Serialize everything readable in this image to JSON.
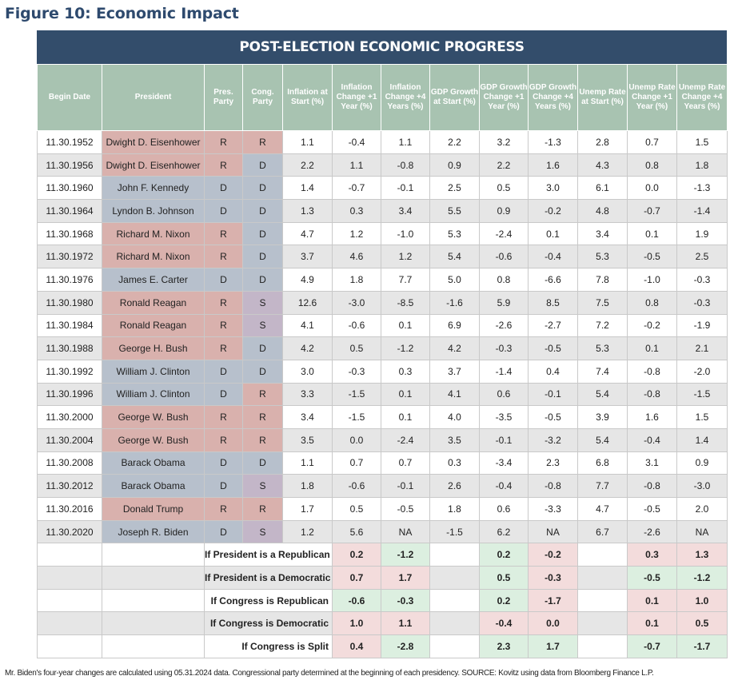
{
  "figure_title": "Figure 10: Economic Impact",
  "banner_title": "POST-ELECTION ECONOMIC PROGRESS",
  "headers": [
    "Begin Date",
    "President",
    "Pres. Party",
    "Cong. Party",
    "Inflation at Start (%)",
    "Inflation Change +1 Year (%)",
    "Inflation Change +4 Years (%)",
    "GDP Growth at Start (%)",
    "GDP Growth Change +1 Year (%)",
    "GDP Growth Change +4 Years (%)",
    "Unemp Rate at Start (%)",
    "Unemp Rate Change +1 Year (%)",
    "Unemp Rate Change +4 Years (%)"
  ],
  "rows": [
    [
      "11.30.1952",
      "Dwight D. Eisenhower",
      "R",
      "R",
      "1.1",
      "-0.4",
      "1.1",
      "2.2",
      "3.2",
      "-1.3",
      "2.8",
      "0.7",
      "1.5"
    ],
    [
      "11.30.1956",
      "Dwight D. Eisenhower",
      "R",
      "D",
      "2.2",
      "1.1",
      "-0.8",
      "0.9",
      "2.2",
      "1.6",
      "4.3",
      "0.8",
      "1.8"
    ],
    [
      "11.30.1960",
      "John F. Kennedy",
      "D",
      "D",
      "1.4",
      "-0.7",
      "-0.1",
      "2.5",
      "0.5",
      "3.0",
      "6.1",
      "0.0",
      "-1.3"
    ],
    [
      "11.30.1964",
      "Lyndon B. Johnson",
      "D",
      "D",
      "1.3",
      "0.3",
      "3.4",
      "5.5",
      "0.9",
      "-0.2",
      "4.8",
      "-0.7",
      "-1.4"
    ],
    [
      "11.30.1968",
      "Richard M. Nixon",
      "R",
      "D",
      "4.7",
      "1.2",
      "-1.0",
      "5.3",
      "-2.4",
      "0.1",
      "3.4",
      "0.1",
      "1.9"
    ],
    [
      "11.30.1972",
      "Richard M. Nixon",
      "R",
      "D",
      "3.7",
      "4.6",
      "1.2",
      "5.4",
      "-0.6",
      "-0.4",
      "5.3",
      "-0.5",
      "2.5"
    ],
    [
      "11.30.1976",
      "James E. Carter",
      "D",
      "D",
      "4.9",
      "1.8",
      "7.7",
      "5.0",
      "0.8",
      "-6.6",
      "7.8",
      "-1.0",
      "-0.3"
    ],
    [
      "11.30.1980",
      "Ronald Reagan",
      "R",
      "S",
      "12.6",
      "-3.0",
      "-8.5",
      "-1.6",
      "5.9",
      "8.5",
      "7.5",
      "0.8",
      "-0.3"
    ],
    [
      "11.30.1984",
      "Ronald Reagan",
      "R",
      "S",
      "4.1",
      "-0.6",
      "0.1",
      "6.9",
      "-2.6",
      "-2.7",
      "7.2",
      "-0.2",
      "-1.9"
    ],
    [
      "11.30.1988",
      "George H. Bush",
      "R",
      "D",
      "4.2",
      "0.5",
      "-1.2",
      "4.2",
      "-0.3",
      "-0.5",
      "5.3",
      "0.1",
      "2.1"
    ],
    [
      "11.30.1992",
      "William J. Clinton",
      "D",
      "D",
      "3.0",
      "-0.3",
      "0.3",
      "3.7",
      "-1.4",
      "0.4",
      "7.4",
      "-0.8",
      "-2.0"
    ],
    [
      "11.30.1996",
      "William J. Clinton",
      "D",
      "R",
      "3.3",
      "-1.5",
      "0.1",
      "4.1",
      "0.6",
      "-0.1",
      "5.4",
      "-0.8",
      "-1.5"
    ],
    [
      "11.30.2000",
      "George W. Bush",
      "R",
      "R",
      "3.4",
      "-1.5",
      "0.1",
      "4.0",
      "-3.5",
      "-0.5",
      "3.9",
      "1.6",
      "1.5"
    ],
    [
      "11.30.2004",
      "George W. Bush",
      "R",
      "R",
      "3.5",
      "0.0",
      "-2.4",
      "3.5",
      "-0.1",
      "-3.2",
      "5.4",
      "-0.4",
      "1.4"
    ],
    [
      "11.30.2008",
      "Barack Obama",
      "D",
      "D",
      "1.1",
      "0.7",
      "0.7",
      "0.3",
      "-3.4",
      "2.3",
      "6.8",
      "3.1",
      "0.9"
    ],
    [
      "11.30.2012",
      "Barack Obama",
      "D",
      "S",
      "1.8",
      "-0.6",
      "-0.1",
      "2.6",
      "-0.4",
      "-0.8",
      "7.7",
      "-0.8",
      "-3.0"
    ],
    [
      "11.30.2016",
      "Donald Trump",
      "R",
      "R",
      "1.7",
      "0.5",
      "-0.5",
      "1.8",
      "0.6",
      "-3.3",
      "4.7",
      "-0.5",
      "2.0"
    ],
    [
      "11.30.2020",
      "Joseph R. Biden",
      "D",
      "S",
      "1.2",
      "5.6",
      "NA",
      "-1.5",
      "6.2",
      "NA",
      "6.7",
      "-2.6",
      "NA"
    ]
  ],
  "summary": [
    {
      "label": "If President is a Republican",
      "inf1": "0.2",
      "inf4": "-1.2",
      "gdp1": "0.2",
      "gdp4": "-0.2",
      "un1": "0.3",
      "un4": "1.3"
    },
    {
      "label": "If President is a Democratic",
      "inf1": "0.7",
      "inf4": "1.7",
      "gdp1": "0.5",
      "gdp4": "-0.3",
      "un1": "-0.5",
      "un4": "-1.2"
    },
    {
      "label": "If Congress is Republican",
      "inf1": "-0.6",
      "inf4": "-0.3",
      "gdp1": "0.2",
      "gdp4": "-1.7",
      "un1": "0.1",
      "un4": "1.0"
    },
    {
      "label": "If Congress is Democratic",
      "inf1": "1.0",
      "inf4": "1.1",
      "gdp1": "-0.4",
      "gdp4": "0.0",
      "un1": "0.1",
      "un4": "0.5"
    },
    {
      "label": "If Congress is Split",
      "inf1": "0.4",
      "inf4": "-2.8",
      "gdp1": "2.3",
      "gdp4": "1.7",
      "un1": "-0.7",
      "un4": "-1.7"
    }
  ],
  "summary_colors": {
    "inflation": [
      "sr",
      "sg",
      "sg",
      "sr",
      "sr"
    ],
    "gdp": [
      "sg",
      "sr",
      "sg",
      "sr",
      "sg"
    ],
    "unemp": [
      "sr",
      "sg",
      "sr",
      "sr",
      "sg"
    ]
  },
  "colors": {
    "header_bg": "#334d6b",
    "col_header_bg": "#a8c3b1",
    "republican": "#d9b1ad",
    "democratic": "#b7c0cc",
    "split": "#c3b6c8",
    "good": "#dcefe0",
    "bad": "#f3dcdc"
  },
  "footnote": "Mr. Biden's four-year changes are calculated using 05.31.2024 data. Congressional party determined at the beginning of each presidency. SOURCE: Kovitz using data from Bloomberg Finance L.P."
}
